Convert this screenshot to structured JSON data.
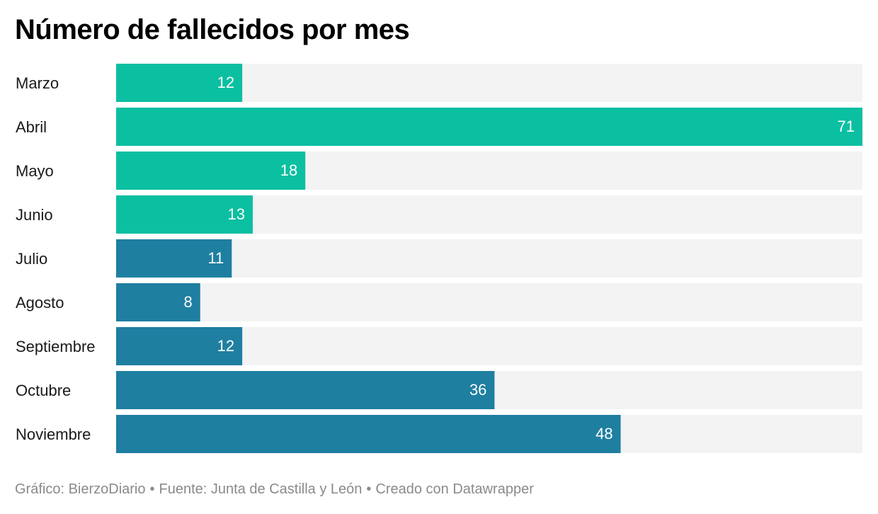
{
  "title": "Número de fallecidos por mes",
  "footer": {
    "credit": "Gráfico: BierzoDiario",
    "source": "Fuente: Junta de Castilla y León",
    "tool": "Creado con Datawrapper",
    "separator": "•"
  },
  "colors": {
    "first_group": "#0bbfa1",
    "second_group": "#1f7fa1",
    "track": "#f3f3f3",
    "value_label": "#ffffff",
    "category_label": "#1a1a1a"
  },
  "chart_data": {
    "type": "bar",
    "orientation": "horizontal",
    "title": "Número de fallecidos por mes",
    "categories": [
      "Marzo",
      "Abril",
      "Mayo",
      "Junio",
      "Julio",
      "Agosto",
      "Septiembre",
      "Octubre",
      "Noviembre"
    ],
    "values": [
      12,
      71,
      18,
      13,
      11,
      8,
      12,
      36,
      48
    ],
    "color_groups": [
      "first_group",
      "first_group",
      "first_group",
      "first_group",
      "second_group",
      "second_group",
      "second_group",
      "second_group",
      "second_group"
    ],
    "xlim": [
      0,
      71
    ],
    "data_labels": true,
    "grid": false,
    "legend": "none"
  }
}
